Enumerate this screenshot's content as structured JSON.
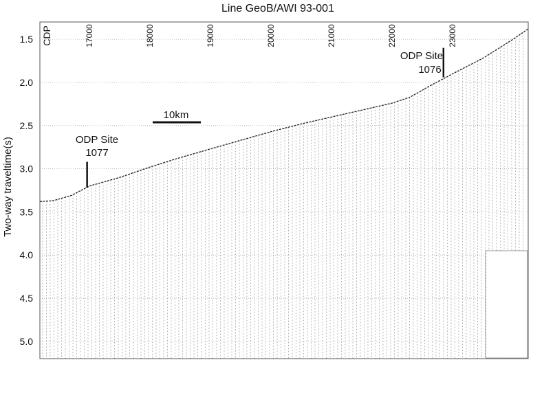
{
  "title": "Line GeoB/AWI 93-001",
  "y_axis": {
    "label": "Two-way traveltime(s)",
    "ticks": [
      "1.5",
      "2.0",
      "2.5",
      "3.0",
      "3.5",
      "4.0",
      "4.5",
      "5.0"
    ],
    "range": [
      1.3,
      5.2
    ]
  },
  "x_axis": {
    "label": "CDP",
    "ticks": [
      "17000",
      "18000",
      "19000",
      "20000",
      "21000",
      "22000",
      "23000"
    ],
    "range": [
      16180,
      24250
    ]
  },
  "scale_bar": {
    "label": "10km"
  },
  "sites": [
    {
      "name": "ODP Site",
      "number": "1077",
      "cdp": 16960,
      "time_top": 2.92,
      "time_bottom": 3.22
    },
    {
      "name": "ODP Site",
      "number": "1076",
      "cdp": 22850,
      "time_top": 1.6,
      "time_bottom": 1.94
    }
  ],
  "seafloor": [
    [
      16180,
      3.38
    ],
    [
      16400,
      3.37
    ],
    [
      16700,
      3.31
    ],
    [
      17000,
      3.2
    ],
    [
      17500,
      3.1
    ],
    [
      18000,
      2.98
    ],
    [
      18500,
      2.87
    ],
    [
      19000,
      2.77
    ],
    [
      19500,
      2.67
    ],
    [
      20000,
      2.57
    ],
    [
      20500,
      2.48
    ],
    [
      21000,
      2.4
    ],
    [
      21500,
      2.32
    ],
    [
      22000,
      2.24
    ],
    [
      22300,
      2.17
    ],
    [
      22600,
      2.05
    ],
    [
      23000,
      1.9
    ],
    [
      23500,
      1.72
    ],
    [
      24000,
      1.5
    ],
    [
      24250,
      1.38
    ]
  ],
  "colors": {
    "trace": "#444444",
    "seafloor": "#222222",
    "grid": "#9a9a9a",
    "frame": "#555555"
  }
}
